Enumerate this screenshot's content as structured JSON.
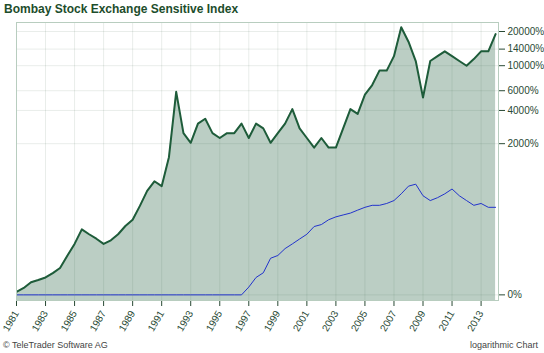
{
  "chart_data": {
    "type": "line",
    "title": "Bombay Stock Exchange Sensitive Index",
    "annotations": [
      "© TeleTrader Software AG",
      "logarithmic Chart"
    ],
    "log": "y",
    "grid": true,
    "x": [
      1981,
      1981.5,
      1982,
      1982.5,
      1983,
      1983.5,
      1984,
      1984.5,
      1985,
      1985.5,
      1986,
      1986.5,
      1987,
      1987.5,
      1988,
      1988.5,
      1989,
      1989.5,
      1990,
      1990.5,
      1991,
      1991.5,
      1992,
      1992.5,
      1993,
      1993.5,
      1994,
      1994.5,
      1995,
      1995.5,
      1996,
      1996.5,
      1997,
      1997.5,
      1998,
      1998.5,
      1999,
      1999.5,
      2000,
      2000.5,
      2001,
      2001.5,
      2002,
      2002.5,
      2003,
      2003.5,
      2004,
      2004.5,
      2005,
      2005.5,
      2006,
      2006.5,
      2007,
      2007.5,
      2008,
      2008.5,
      2009,
      2009.5,
      2010,
      2010.5,
      2011,
      2011.5,
      2012,
      2012.5,
      2013,
      2013.5,
      2014
    ],
    "xlim": [
      1981,
      2014.2
    ],
    "xticks": [
      1981,
      1983,
      1985,
      1987,
      1989,
      1991,
      1993,
      1995,
      1997,
      1999,
      2001,
      2003,
      2005,
      2007,
      2009,
      2011,
      2013
    ],
    "ylim": [
      -12,
      24000
    ],
    "yticks": [
      {
        "value": 0,
        "label": "0%"
      },
      {
        "value": 2000,
        "label": "2000%"
      },
      {
        "value": 4000,
        "label": "4000%"
      },
      {
        "value": 6000,
        "label": "6000%"
      },
      {
        "value": 10000,
        "label": "10000%"
      },
      {
        "value": 14000,
        "label": "14000%"
      },
      {
        "value": 20000,
        "label": "20000%"
      }
    ],
    "series": [
      {
        "type": "area",
        "color": "#1e5c3a",
        "values": [
          6,
          15,
          29,
          35,
          42,
          55,
          72,
          120,
          179,
          274,
          239,
          210,
          179,
          200,
          239,
          300,
          354,
          500,
          711,
          885,
          793,
          1499,
          5870,
          2495,
          2038,
          3048,
          3368,
          2495,
          2255,
          2495,
          2495,
          3048,
          2255,
          3048,
          2758,
          2038,
          2495,
          3048,
          4116,
          2758,
          2255,
          1841,
          2255,
          1841,
          1841,
          2758,
          4116,
          3728,
          5537,
          6739,
          9045,
          9045,
          12140,
          21780,
          16270,
          10990,
          5220,
          10990,
          12140,
          13380,
          12140,
          10990,
          9980,
          11440,
          13380,
          13380,
          18990
        ]
      },
      {
        "type": "line",
        "color": "#2233cc",
        "values": [
          0,
          0,
          0,
          0,
          0,
          0,
          0,
          0,
          0,
          0,
          0,
          0,
          0,
          0,
          0,
          0,
          0,
          0,
          0,
          0,
          0,
          0,
          0,
          0,
          0,
          0,
          0,
          0,
          0,
          0,
          0,
          0,
          17,
          42,
          56,
          109,
          121,
          154,
          179,
          208,
          239,
          296,
          312,
          354,
          381,
          400,
          419,
          451,
          483,
          507,
          507,
          530,
          568,
          665,
          793,
          829,
          636,
          568,
          608,
          665,
          743,
          636,
          568,
          507,
          530,
          483,
          483
        ]
      }
    ]
  }
}
